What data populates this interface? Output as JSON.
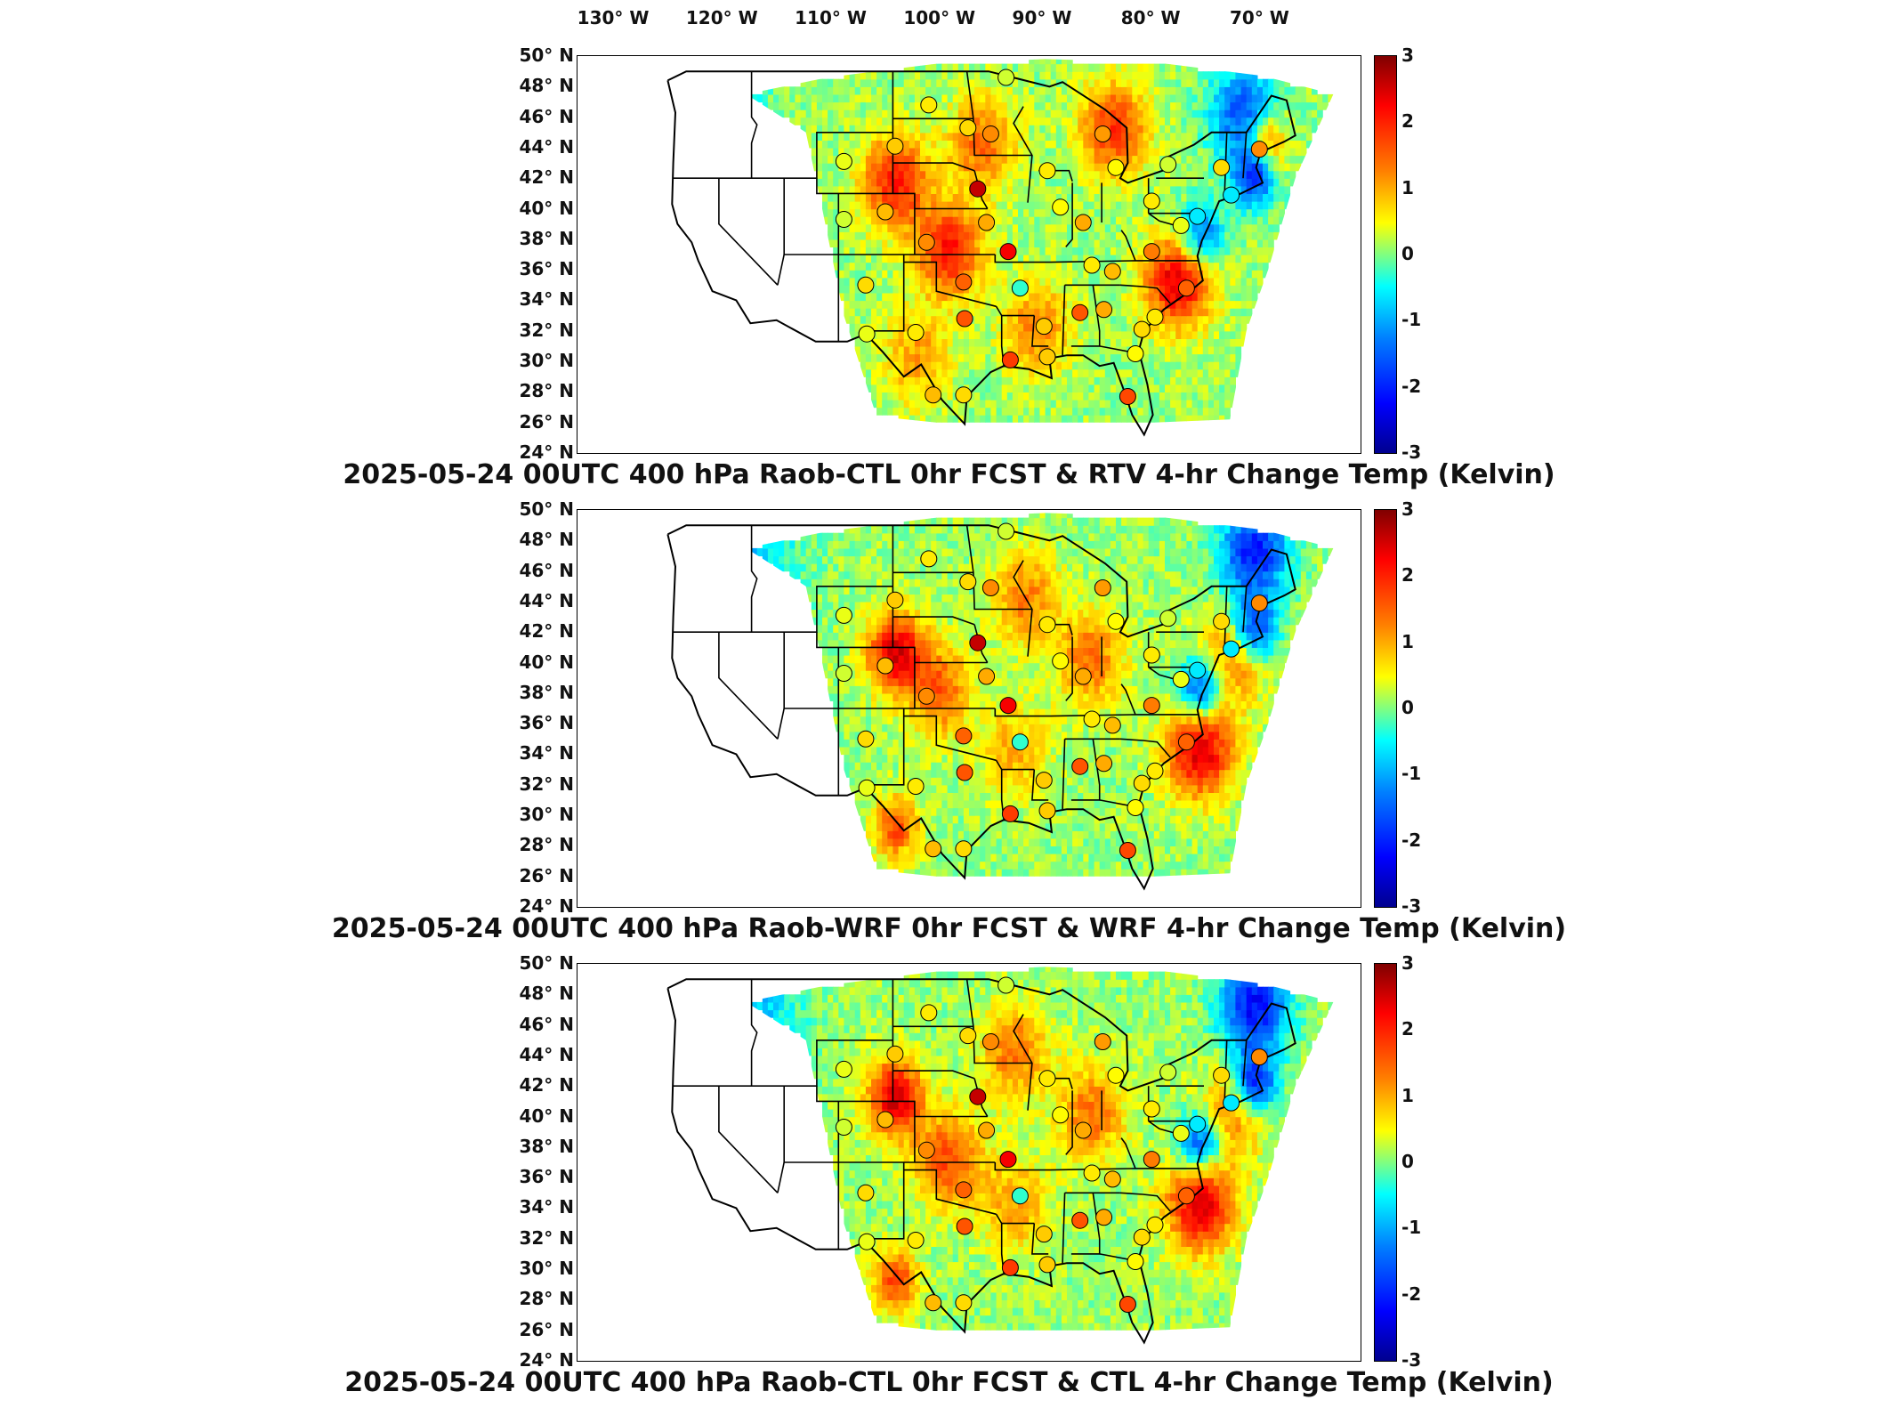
{
  "longitude_labels": [
    "130° W",
    "120° W",
    "110° W",
    "100° W",
    "90° W",
    "80° W",
    "70° W"
  ],
  "latitude_labels": [
    "50° N",
    "48° N",
    "46° N",
    "44° N",
    "42° N",
    "40° N",
    "38° N",
    "36° N",
    "34° N",
    "32° N",
    "30° N",
    "28° N",
    "26° N",
    "24° N"
  ],
  "colorbar": {
    "ticks": [
      "3",
      "2",
      "1",
      "0",
      "-1",
      "-2",
      "-3"
    ],
    "min": -3,
    "max": 3
  },
  "panels": [
    {
      "title": "2025-05-24 00UTC 400 hPa Raob-CTL 0hr FCST & RTV 4-hr Change Temp (Kelvin)"
    },
    {
      "title": "2025-05-24 00UTC 400 hPa Raob-WRF 0hr FCST & WRF 4-hr Change Temp (Kelvin)"
    },
    {
      "title": "2025-05-24 00UTC 400 hPa Raob-CTL 0hr FCST & CTL 4-hr Change Temp (Kelvin)"
    }
  ],
  "raob_stations": [
    {
      "lon": -100.7,
      "lat": 46.8,
      "value": 0.6
    },
    {
      "lon": -93.6,
      "lat": 48.6,
      "value": 0.3
    },
    {
      "lon": -97.1,
      "lat": 45.3,
      "value": 0.7
    },
    {
      "lon": -108.5,
      "lat": 43.1,
      "value": 0.4
    },
    {
      "lon": -103.8,
      "lat": 44.1,
      "value": 0.8
    },
    {
      "lon": -96.2,
      "lat": 41.3,
      "value": 2.6
    },
    {
      "lon": -95.0,
      "lat": 44.9,
      "value": 1.2
    },
    {
      "lon": -89.8,
      "lat": 42.5,
      "value": 0.6
    },
    {
      "lon": -84.7,
      "lat": 44.9,
      "value": 1.1
    },
    {
      "lon": -88.6,
      "lat": 40.1,
      "value": 0.5
    },
    {
      "lon": -86.5,
      "lat": 39.1,
      "value": 1.0
    },
    {
      "lon": -93.4,
      "lat": 37.2,
      "value": 2.3
    },
    {
      "lon": -100.9,
      "lat": 37.8,
      "value": 1.2
    },
    {
      "lon": -104.7,
      "lat": 39.8,
      "value": 0.9
    },
    {
      "lon": -108.5,
      "lat": 39.3,
      "value": 0.3
    },
    {
      "lon": -106.5,
      "lat": 35.0,
      "value": 0.7
    },
    {
      "lon": -97.5,
      "lat": 35.2,
      "value": 1.5
    },
    {
      "lon": -95.4,
      "lat": 39.1,
      "value": 1.0
    },
    {
      "lon": -92.3,
      "lat": 34.8,
      "value": -0.3
    },
    {
      "lon": -90.1,
      "lat": 32.3,
      "value": 0.8
    },
    {
      "lon": -97.4,
      "lat": 32.8,
      "value": 1.6
    },
    {
      "lon": -101.9,
      "lat": 31.9,
      "value": 0.6
    },
    {
      "lon": -106.4,
      "lat": 31.8,
      "value": 0.4
    },
    {
      "lon": -100.3,
      "lat": 27.8,
      "value": 0.9
    },
    {
      "lon": -97.5,
      "lat": 27.8,
      "value": 0.7
    },
    {
      "lon": -93.2,
      "lat": 30.1,
      "value": 1.8
    },
    {
      "lon": -89.8,
      "lat": 30.3,
      "value": 0.8
    },
    {
      "lon": -86.8,
      "lat": 33.2,
      "value": 1.6
    },
    {
      "lon": -84.6,
      "lat": 33.4,
      "value": 1.0
    },
    {
      "lon": -81.7,
      "lat": 30.5,
      "value": 0.5
    },
    {
      "lon": -82.4,
      "lat": 27.7,
      "value": 1.7
    },
    {
      "lon": -81.1,
      "lat": 32.1,
      "value": 0.7
    },
    {
      "lon": -79.9,
      "lat": 32.9,
      "value": 0.6
    },
    {
      "lon": -85.7,
      "lat": 36.3,
      "value": 0.6
    },
    {
      "lon": -83.8,
      "lat": 35.9,
      "value": 0.9
    },
    {
      "lon": -77.0,
      "lat": 34.8,
      "value": 1.5
    },
    {
      "lon": -80.2,
      "lat": 37.2,
      "value": 1.3
    },
    {
      "lon": -77.5,
      "lat": 38.9,
      "value": 0.4
    },
    {
      "lon": -76.0,
      "lat": 39.5,
      "value": -0.6
    },
    {
      "lon": -80.2,
      "lat": 40.5,
      "value": 0.6
    },
    {
      "lon": -83.5,
      "lat": 42.7,
      "value": 0.5
    },
    {
      "lon": -73.8,
      "lat": 42.7,
      "value": 0.7
    },
    {
      "lon": -72.9,
      "lat": 40.9,
      "value": -0.6
    },
    {
      "lon": -70.3,
      "lat": 43.9,
      "value": 1.2
    },
    {
      "lon": -78.7,
      "lat": 42.9,
      "value": 0.3
    }
  ]
}
